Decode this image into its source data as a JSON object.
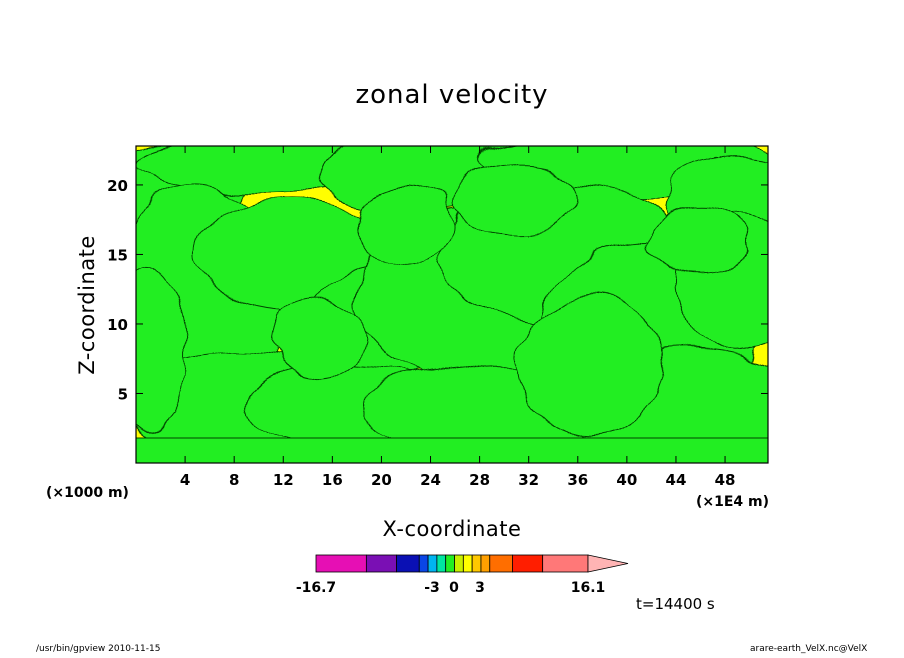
{
  "chart_data": {
    "type": "heatmap",
    "title": "zonal velocity",
    "xlabel": "X-coordinate",
    "ylabel": "Z-coordinate",
    "x_unit": "(×1E4 m)",
    "y_unit": "(×1000 m)",
    "xlim": [
      0,
      51.5
    ],
    "ylim": [
      0,
      22.8
    ],
    "x_ticks": [
      "4",
      "8",
      "12",
      "16",
      "20",
      "24",
      "28",
      "32",
      "36",
      "40",
      "44",
      "48"
    ],
    "y_ticks": [
      "5",
      "10",
      "15",
      "20"
    ],
    "colors": {
      "positive_small": "#ffff00",
      "negative_small": "#22ee22",
      "contour": "#004400"
    },
    "colorbar": {
      "labels": [
        "-16.7",
        "-3",
        "0",
        "3",
        "16.1"
      ],
      "colors": [
        "#e60fb4",
        "#7a0fb4",
        "#0a10b4",
        "#0a46e6",
        "#00b4f0",
        "#00e6a0",
        "#22ee22",
        "#c8f000",
        "#ffff00",
        "#ffc800",
        "#ffa000",
        "#ff6e00",
        "#ff1e00",
        "#ff7878",
        "#ffb4b4"
      ]
    },
    "time_label": "t=14400 s"
  },
  "footer": {
    "left": "/usr/bin/gpview  2010-11-15",
    "right": "arare-earth_VelX.nc@VelX"
  }
}
